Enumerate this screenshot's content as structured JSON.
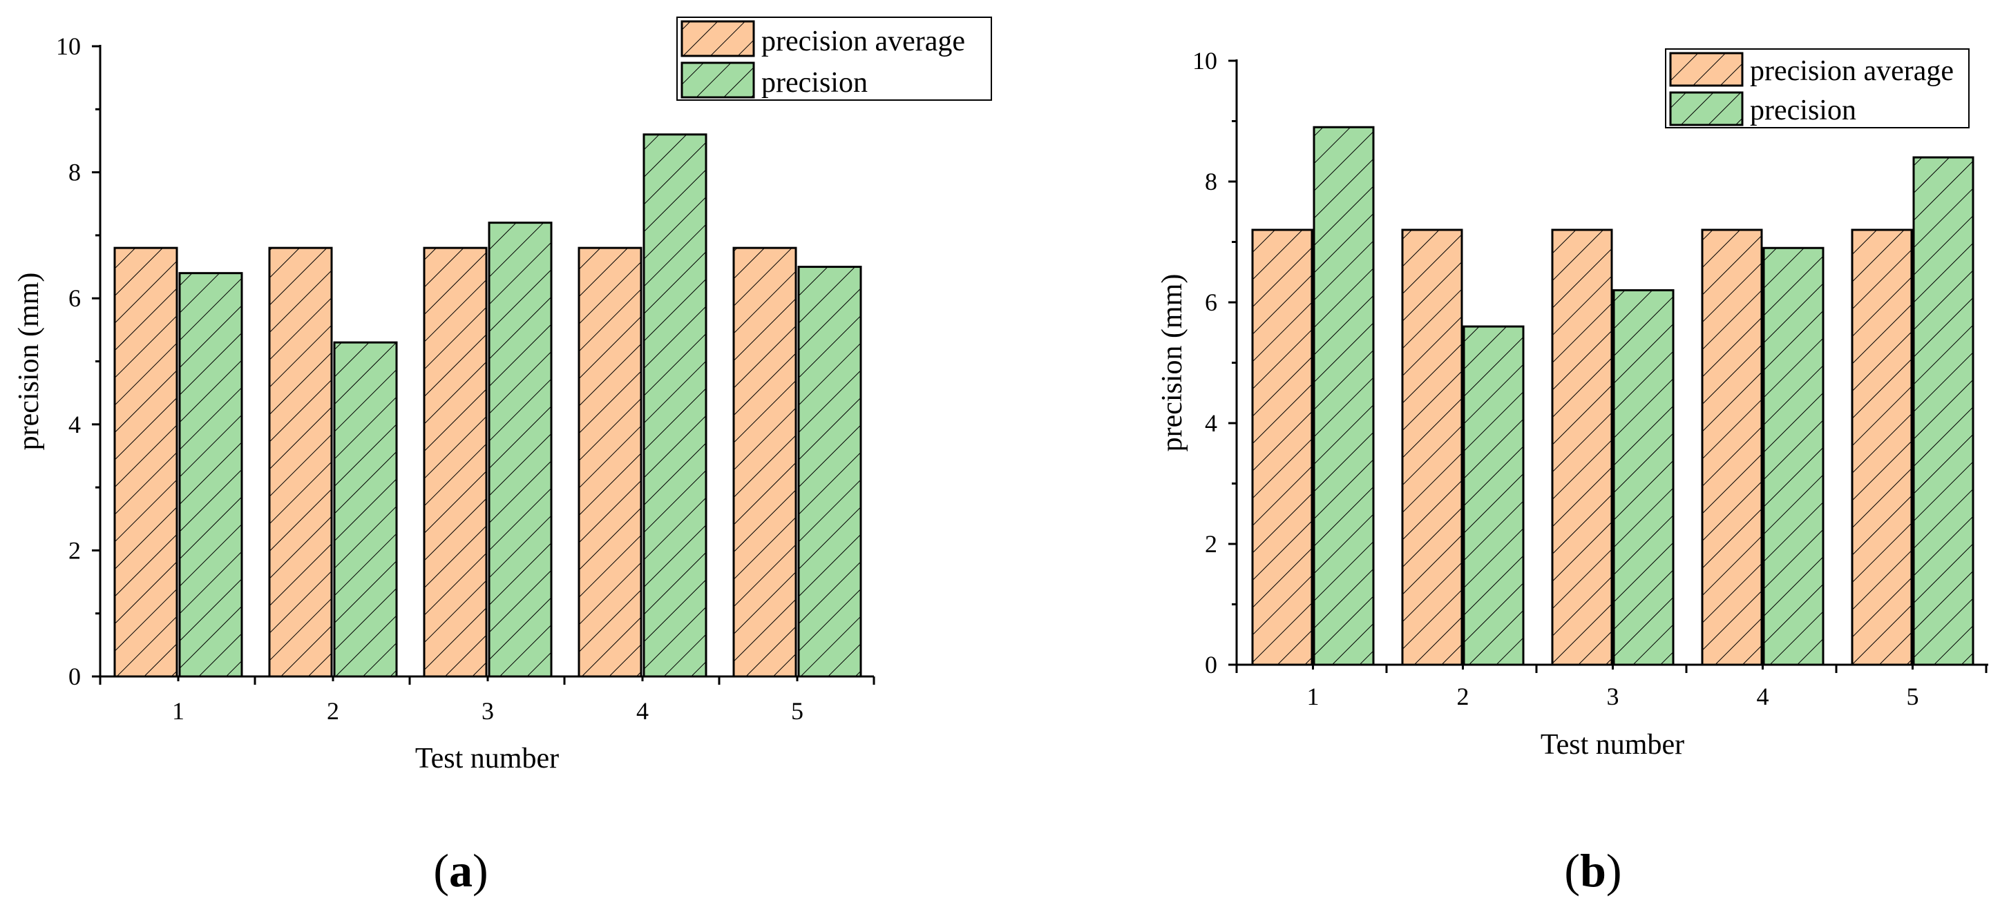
{
  "colors": {
    "precision_average_fill": "#fdc89c",
    "precision_fill": "#a3dca3",
    "hatch": "#000000"
  },
  "chart_data": [
    {
      "panel": "a",
      "type": "bar",
      "title": "",
      "xlabel": "Test number",
      "ylabel": "precision (mm)",
      "ylim": [
        0,
        10
      ],
      "yticks": [
        "0",
        "2",
        "4",
        "6",
        "8",
        "10"
      ],
      "categories": [
        "1",
        "2",
        "3",
        "4",
        "5"
      ],
      "series": [
        {
          "name": "precision average",
          "values": [
            6.8,
            6.8,
            6.8,
            6.8,
            6.8
          ]
        },
        {
          "name": "precision",
          "values": [
            6.4,
            5.3,
            7.2,
            8.6,
            6.5
          ]
        }
      ],
      "legend_position": "top-right"
    },
    {
      "panel": "b",
      "type": "bar",
      "title": "",
      "xlabel": "Test number",
      "ylabel": "precision (mm)",
      "ylim": [
        0,
        10
      ],
      "yticks": [
        "0",
        "2",
        "4",
        "6",
        "8",
        "10"
      ],
      "categories": [
        "1",
        "2",
        "3",
        "4",
        "5"
      ],
      "series": [
        {
          "name": "precision average",
          "values": [
            7.2,
            7.2,
            7.2,
            7.2,
            7.2
          ]
        },
        {
          "name": "precision",
          "values": [
            8.9,
            5.6,
            6.2,
            6.9,
            8.4
          ]
        }
      ],
      "legend_position": "top-right"
    }
  ],
  "panel_labels": [
    {
      "open": "(",
      "letter": "a",
      "close": ")"
    },
    {
      "open": "(",
      "letter": "b",
      "close": ")"
    }
  ]
}
